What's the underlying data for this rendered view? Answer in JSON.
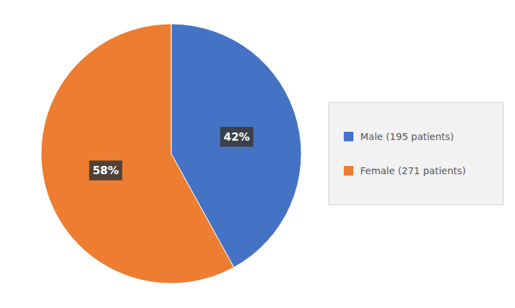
{
  "chart_data": {
    "type": "pie",
    "categories": [
      "Male (195 patients)",
      "Female (271 patients)"
    ],
    "values": [
      42,
      58
    ],
    "value_labels": [
      "42%",
      "58%"
    ],
    "colors": [
      "#4472C4",
      "#ED7D31"
    ],
    "data_labels": true,
    "legend": "right"
  }
}
